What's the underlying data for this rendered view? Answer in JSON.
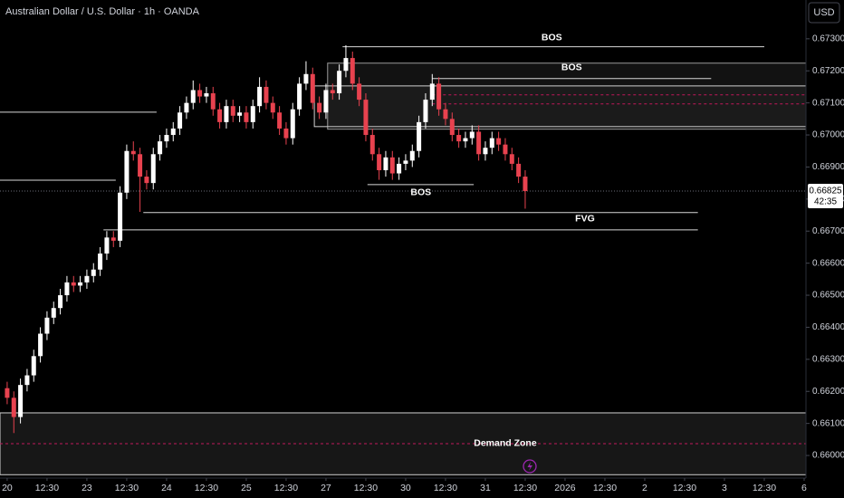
{
  "chart_data": {
    "type": "candlestick",
    "title": "Australian Dollar / U.S. Dollar · 1h · OANDA",
    "currency": "USD",
    "up_color": "#ffffff",
    "down_color": "#e8424f",
    "xlim": [
      -2.16,
      240.55
    ],
    "ylim": [
      0.65938,
      0.67421
    ],
    "xticks": [
      {
        "value": 0,
        "label": "20"
      },
      {
        "value": 12,
        "label": "12:30"
      },
      {
        "value": 24,
        "label": "23"
      },
      {
        "value": 36,
        "label": "12:30"
      },
      {
        "value": 48,
        "label": "24"
      },
      {
        "value": 60,
        "label": "12:30"
      },
      {
        "value": 72,
        "label": "25"
      },
      {
        "value": 84,
        "label": "12:30"
      },
      {
        "value": 96,
        "label": "27"
      },
      {
        "value": 108,
        "label": "12:30"
      },
      {
        "value": 120,
        "label": "30"
      },
      {
        "value": 132,
        "label": "12:30"
      },
      {
        "value": 144,
        "label": "31"
      },
      {
        "value": 156,
        "label": "12:30"
      },
      {
        "value": 168,
        "label": "2026"
      },
      {
        "value": 180,
        "label": "12:30"
      },
      {
        "value": 192,
        "label": "2"
      },
      {
        "value": 204,
        "label": "12:30"
      },
      {
        "value": 216,
        "label": "3"
      },
      {
        "value": 228,
        "label": "12:30"
      },
      {
        "value": 240,
        "label": "6"
      }
    ],
    "yticks": [
      {
        "value": 0.66,
        "label": "0.66000"
      },
      {
        "value": 0.661,
        "label": "0.66100"
      },
      {
        "value": 0.662,
        "label": "0.66200"
      },
      {
        "value": 0.663,
        "label": "0.66300"
      },
      {
        "value": 0.664,
        "label": "0.66400"
      },
      {
        "value": 0.665,
        "label": "0.66500"
      },
      {
        "value": 0.666,
        "label": "0.66600"
      },
      {
        "value": 0.667,
        "label": "0.66700"
      },
      {
        "value": 0.668,
        "label": "0.66800"
      },
      {
        "value": 0.669,
        "label": "0.66900"
      },
      {
        "value": 0.67,
        "label": "0.67000"
      },
      {
        "value": 0.671,
        "label": "0.67100"
      },
      {
        "value": 0.672,
        "label": "0.67200"
      },
      {
        "value": 0.673,
        "label": "0.67300"
      }
    ],
    "x": [
      0,
      2,
      4,
      6,
      8,
      10,
      12,
      14,
      16,
      18,
      20,
      22,
      24,
      26,
      28,
      30,
      32,
      34,
      36,
      38,
      40,
      42,
      44,
      46,
      48,
      50,
      52,
      54,
      56,
      58,
      60,
      62,
      64,
      66,
      68,
      70,
      72,
      74,
      76,
      78,
      80,
      82,
      84,
      86,
      88,
      90,
      92,
      94,
      96,
      98,
      100,
      102,
      104,
      106,
      108,
      110,
      112,
      114,
      116,
      118,
      120,
      122,
      124,
      126,
      128,
      130,
      132,
      134,
      136,
      138,
      140,
      142,
      144,
      146,
      148,
      150,
      152,
      154,
      156
    ],
    "open": [
      0.6621,
      0.6618,
      0.6612,
      0.6622,
      0.6625,
      0.6631,
      0.6638,
      0.6643,
      0.6646,
      0.665,
      0.6654,
      0.6653,
      0.6654,
      0.6656,
      0.6658,
      0.6663,
      0.6668,
      0.6667,
      0.6682,
      0.6695,
      0.6694,
      0.6687,
      0.6685,
      0.6694,
      0.6698,
      0.67,
      0.6702,
      0.6707,
      0.671,
      0.6714,
      0.6712,
      0.6713,
      0.6708,
      0.6704,
      0.6709,
      0.6706,
      0.6707,
      0.6704,
      0.6709,
      0.6715,
      0.671,
      0.6707,
      0.6702,
      0.6699,
      0.6708,
      0.6716,
      0.6719,
      0.671,
      0.6707,
      0.6714,
      0.6713,
      0.672,
      0.6724,
      0.6716,
      0.6711,
      0.67,
      0.6694,
      0.6689,
      0.6693,
      0.6688,
      0.6691,
      0.6692,
      0.6695,
      0.6704,
      0.6711,
      0.6716,
      0.6708,
      0.6705,
      0.67,
      0.6698,
      0.6699,
      0.6701,
      0.6694,
      0.6696,
      0.6699,
      0.6697,
      0.6694,
      0.6691,
      0.6687
    ],
    "high": [
      0.6623,
      0.662,
      0.6624,
      0.6627,
      0.6633,
      0.664,
      0.6645,
      0.6648,
      0.6652,
      0.6656,
      0.6656,
      0.6656,
      0.6658,
      0.666,
      0.6665,
      0.667,
      0.667,
      0.6684,
      0.6697,
      0.6698,
      0.6696,
      0.6689,
      0.6696,
      0.67,
      0.6702,
      0.6704,
      0.6709,
      0.6712,
      0.6717,
      0.6716,
      0.6715,
      0.6715,
      0.671,
      0.6711,
      0.6711,
      0.6709,
      0.6709,
      0.6711,
      0.6718,
      0.6717,
      0.6712,
      0.6709,
      0.6704,
      0.671,
      0.6718,
      0.6723,
      0.6721,
      0.6712,
      0.6716,
      0.6716,
      0.6722,
      0.6728,
      0.6726,
      0.6718,
      0.6713,
      0.6702,
      0.6696,
      0.6695,
      0.6695,
      0.6693,
      0.6694,
      0.6697,
      0.6706,
      0.6713,
      0.6719,
      0.6718,
      0.671,
      0.6707,
      0.6702,
      0.6701,
      0.6703,
      0.6703,
      0.6698,
      0.6701,
      0.6701,
      0.6699,
      0.6696,
      0.6693,
      0.6689
    ],
    "low": [
      0.6616,
      0.6607,
      0.661,
      0.662,
      0.6623,
      0.6629,
      0.6636,
      0.6641,
      0.6644,
      0.6648,
      0.6651,
      0.6651,
      0.6652,
      0.6654,
      0.6656,
      0.6661,
      0.6665,
      0.6665,
      0.668,
      0.6692,
      0.6676,
      0.6683,
      0.6683,
      0.6692,
      0.6696,
      0.6698,
      0.67,
      0.6705,
      0.6708,
      0.671,
      0.671,
      0.6706,
      0.6702,
      0.6702,
      0.6704,
      0.6704,
      0.6702,
      0.6702,
      0.6707,
      0.6708,
      0.6705,
      0.67,
      0.6697,
      0.6697,
      0.6706,
      0.6714,
      0.6708,
      0.6705,
      0.6705,
      0.6711,
      0.6711,
      0.6718,
      0.6714,
      0.6709,
      0.6698,
      0.6692,
      0.6686,
      0.6687,
      0.6686,
      0.6686,
      0.6689,
      0.669,
      0.6693,
      0.6702,
      0.6709,
      0.6706,
      0.6703,
      0.6698,
      0.6696,
      0.6696,
      0.6697,
      0.6692,
      0.6692,
      0.6694,
      0.6695,
      0.6692,
      0.6689,
      0.6685,
      0.6677
    ],
    "close": [
      0.6618,
      0.6612,
      0.6622,
      0.6625,
      0.6631,
      0.6638,
      0.6643,
      0.6646,
      0.665,
      0.6654,
      0.6653,
      0.6654,
      0.6656,
      0.6658,
      0.6663,
      0.6668,
      0.6667,
      0.6682,
      0.6695,
      0.6694,
      0.6687,
      0.6685,
      0.6694,
      0.6698,
      0.67,
      0.6702,
      0.6707,
      0.671,
      0.6714,
      0.6712,
      0.6713,
      0.6708,
      0.6704,
      0.6709,
      0.6706,
      0.6707,
      0.6704,
      0.6709,
      0.6715,
      0.671,
      0.6707,
      0.6702,
      0.6699,
      0.6708,
      0.6716,
      0.6719,
      0.671,
      0.6707,
      0.6714,
      0.6713,
      0.672,
      0.6724,
      0.6716,
      0.6711,
      0.67,
      0.6694,
      0.6689,
      0.6693,
      0.6688,
      0.6691,
      0.6692,
      0.6695,
      0.6704,
      0.6711,
      0.6716,
      0.6708,
      0.6705,
      0.67,
      0.6698,
      0.6699,
      0.6701,
      0.6694,
      0.6696,
      0.6699,
      0.6697,
      0.6694,
      0.6691,
      0.6687,
      0.66825
    ],
    "price_line": 0.66825,
    "countdown": "42:35",
    "zones": [
      {
        "y": [
          0.67018,
          0.67224
        ],
        "x": [
          96.5,
          240.55
        ],
        "fill": "rgba(255,255,255,0.07)",
        "color": "#9a9a9a"
      },
      {
        "y": [
          0.67026,
          0.67153
        ],
        "x": [
          92.5,
          240.55
        ],
        "fill": "rgba(255,255,255,0.04)",
        "color": "#d0d0d0"
      },
      {
        "y": [
          0.6594,
          0.66133
        ],
        "x": [
          -2.16,
          240.55
        ],
        "fill": "rgba(255,255,255,0.09)",
        "color": "#d0d0d0"
      }
    ],
    "levels": [
      {
        "y": 0.67275,
        "x": [
          101,
          228
        ],
        "color": "#d8d8d8",
        "dashed": false
      },
      {
        "y": 0.67176,
        "x": [
          128,
          212
        ],
        "color": "#d8d8d8",
        "dashed": false
      },
      {
        "y": 0.66845,
        "x": [
          108.5,
          140.5
        ],
        "color": "#d8d8d8",
        "dashed": false
      },
      {
        "y": 0.66758,
        "x": [
          41,
          208
        ],
        "color": "#d8d8d8",
        "dashed": false
      },
      {
        "y": 0.66704,
        "x": [
          29,
          208
        ],
        "color": "#d8d8d8",
        "dashed": false
      },
      {
        "y": 0.67071,
        "x": [
          -2.16,
          45
        ],
        "color": "#d8d8d8",
        "dashed": false
      },
      {
        "y": 0.66859,
        "x": [
          -2.16,
          32.7
        ],
        "color": "#d8d8d8",
        "dashed": false
      },
      {
        "y": 0.67125,
        "x": [
          128,
          240.55
        ],
        "color": "#c2185b",
        "dashed": true
      },
      {
        "y": 0.67097,
        "x": [
          128,
          240.55
        ],
        "color": "#c2185b",
        "dashed": true
      },
      {
        "y": 0.66037,
        "x": [
          -2.16,
          240.55
        ],
        "color": "#c2185b",
        "dashed": true
      }
    ],
    "annotations": [
      {
        "text": "BOS",
        "x": 164,
        "y": 0.67303
      },
      {
        "text": "BOS",
        "x": 170,
        "y": 0.6721
      },
      {
        "text": "BOS",
        "x": 124.6,
        "y": 0.6682
      },
      {
        "text": "FVG",
        "x": 174,
        "y": 0.66738
      },
      {
        "text": "Demand Zone",
        "x": 150,
        "y": 0.66037
      }
    ]
  }
}
